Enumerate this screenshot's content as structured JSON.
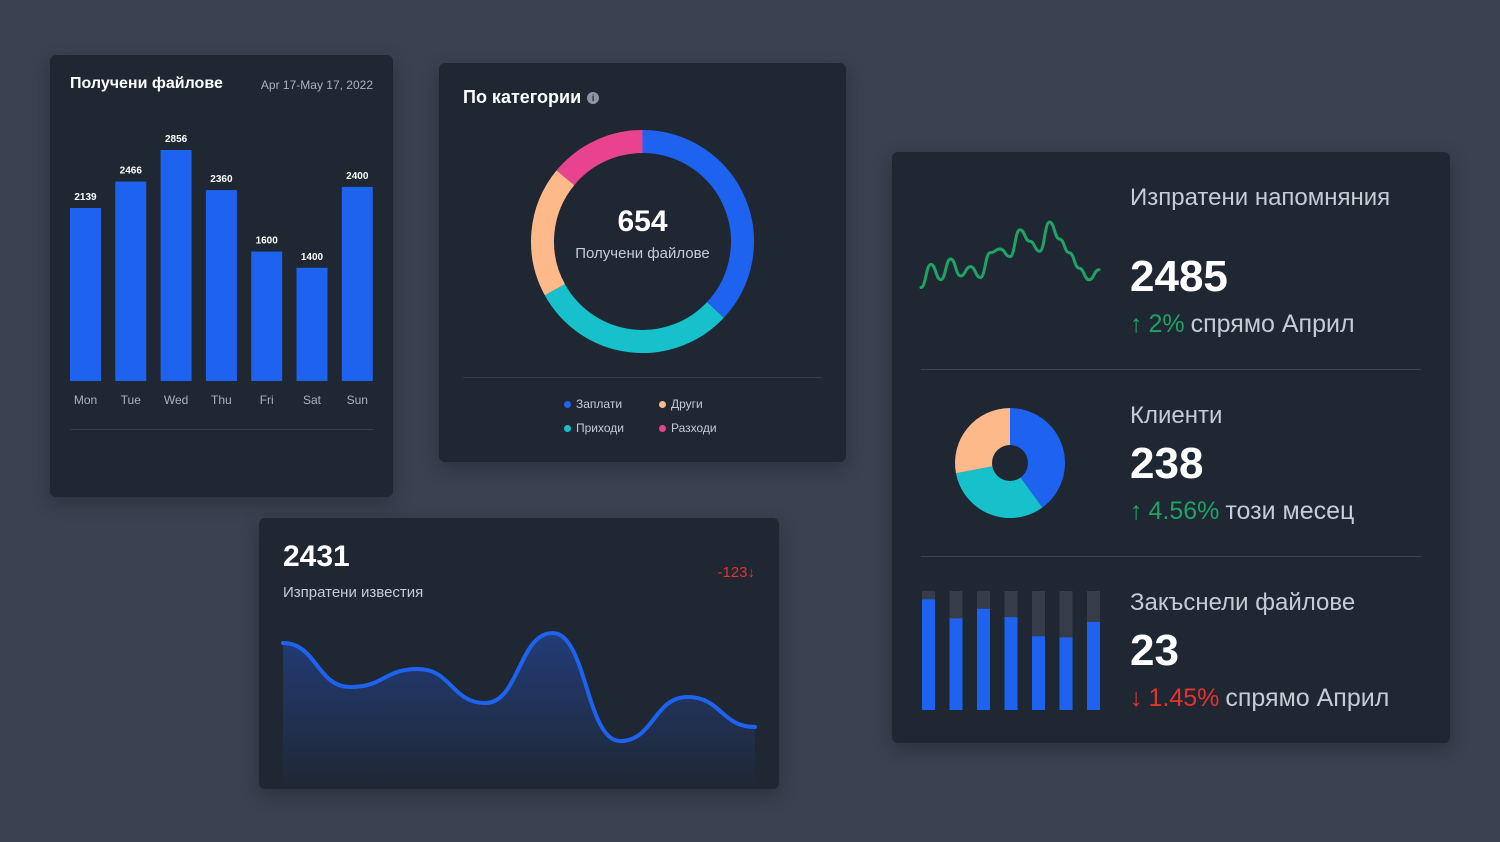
{
  "colors": {
    "background": "#3a4150",
    "card": "#1f2733",
    "blue": "#1e63f0",
    "teal": "#17c1cb",
    "peach": "#fdb98a",
    "pink": "#e8438e",
    "green": "#1fa364",
    "red": "#e5322d"
  },
  "bar_card": {
    "title": "Получени файлове",
    "date_range": "Apr 17-May 17, 2022"
  },
  "donut_card": {
    "title": "По категории",
    "info_icon": "i",
    "center_value": "654",
    "center_label": "Получени файлове",
    "legend": [
      {
        "label": "Заплати",
        "color": "#1e63f0"
      },
      {
        "label": "Други",
        "color": "#fdb98a"
      },
      {
        "label": "Приходи",
        "color": "#17c1cb"
      },
      {
        "label": "Разходи",
        "color": "#e8438e"
      }
    ]
  },
  "area_card": {
    "value": "2431",
    "label": "Изпратени известия",
    "delta": "-123↓"
  },
  "stats_card": {
    "reminders": {
      "title": "Изпратени напомняния",
      "value": "2485",
      "arrow": "↑",
      "change": "2%",
      "suffix": "спрямо Април"
    },
    "clients": {
      "title": "Клиенти",
      "value": "238",
      "arrow": "↑",
      "change": "4.56%",
      "suffix": "този месец"
    },
    "late_files": {
      "title": "Закъснели файлове",
      "value": "23",
      "arrow": "↓",
      "change": "1.45%",
      "suffix": "спрямо Април"
    }
  },
  "chart_data": [
    {
      "type": "bar",
      "categories": [
        "Mon",
        "Tue",
        "Wed",
        "Thu",
        "Fri",
        "Sat",
        "Sun"
      ],
      "values": [
        2139,
        2466,
        2856,
        2360,
        1600,
        1400,
        2400
      ],
      "title": "Получени файлове",
      "ylim": [
        0,
        2856
      ],
      "grid": false
    },
    {
      "type": "pie",
      "donut": true,
      "categories": [
        "Заплати",
        "Приходи",
        "Други",
        "Разходи"
      ],
      "values": [
        37,
        30,
        19,
        14
      ],
      "colors": [
        "#1e63f0",
        "#17c1cb",
        "#fdb98a",
        "#e8438e"
      ]
    },
    {
      "type": "area",
      "values": [
        100,
        56,
        74,
        40,
        110,
        2,
        46,
        16
      ],
      "ylim": [
        0,
        115
      ],
      "grid": false
    },
    {
      "type": "line",
      "values": [
        15,
        45,
        25,
        52,
        30,
        42,
        28,
        60,
        65,
        55,
        90,
        75,
        62,
        100,
        78,
        60,
        40,
        25,
        38
      ],
      "ylim": [
        0,
        100
      ],
      "grid": false
    },
    {
      "type": "pie",
      "donut": true,
      "values": [
        40,
        32,
        28
      ],
      "colors": [
        "#1e63f0",
        "#17c1cb",
        "#fdb98a"
      ]
    },
    {
      "type": "bar",
      "values": [
        93,
        77,
        85,
        78,
        62,
        61,
        74
      ],
      "ylim": [
        0,
        100
      ],
      "grid": false
    }
  ]
}
